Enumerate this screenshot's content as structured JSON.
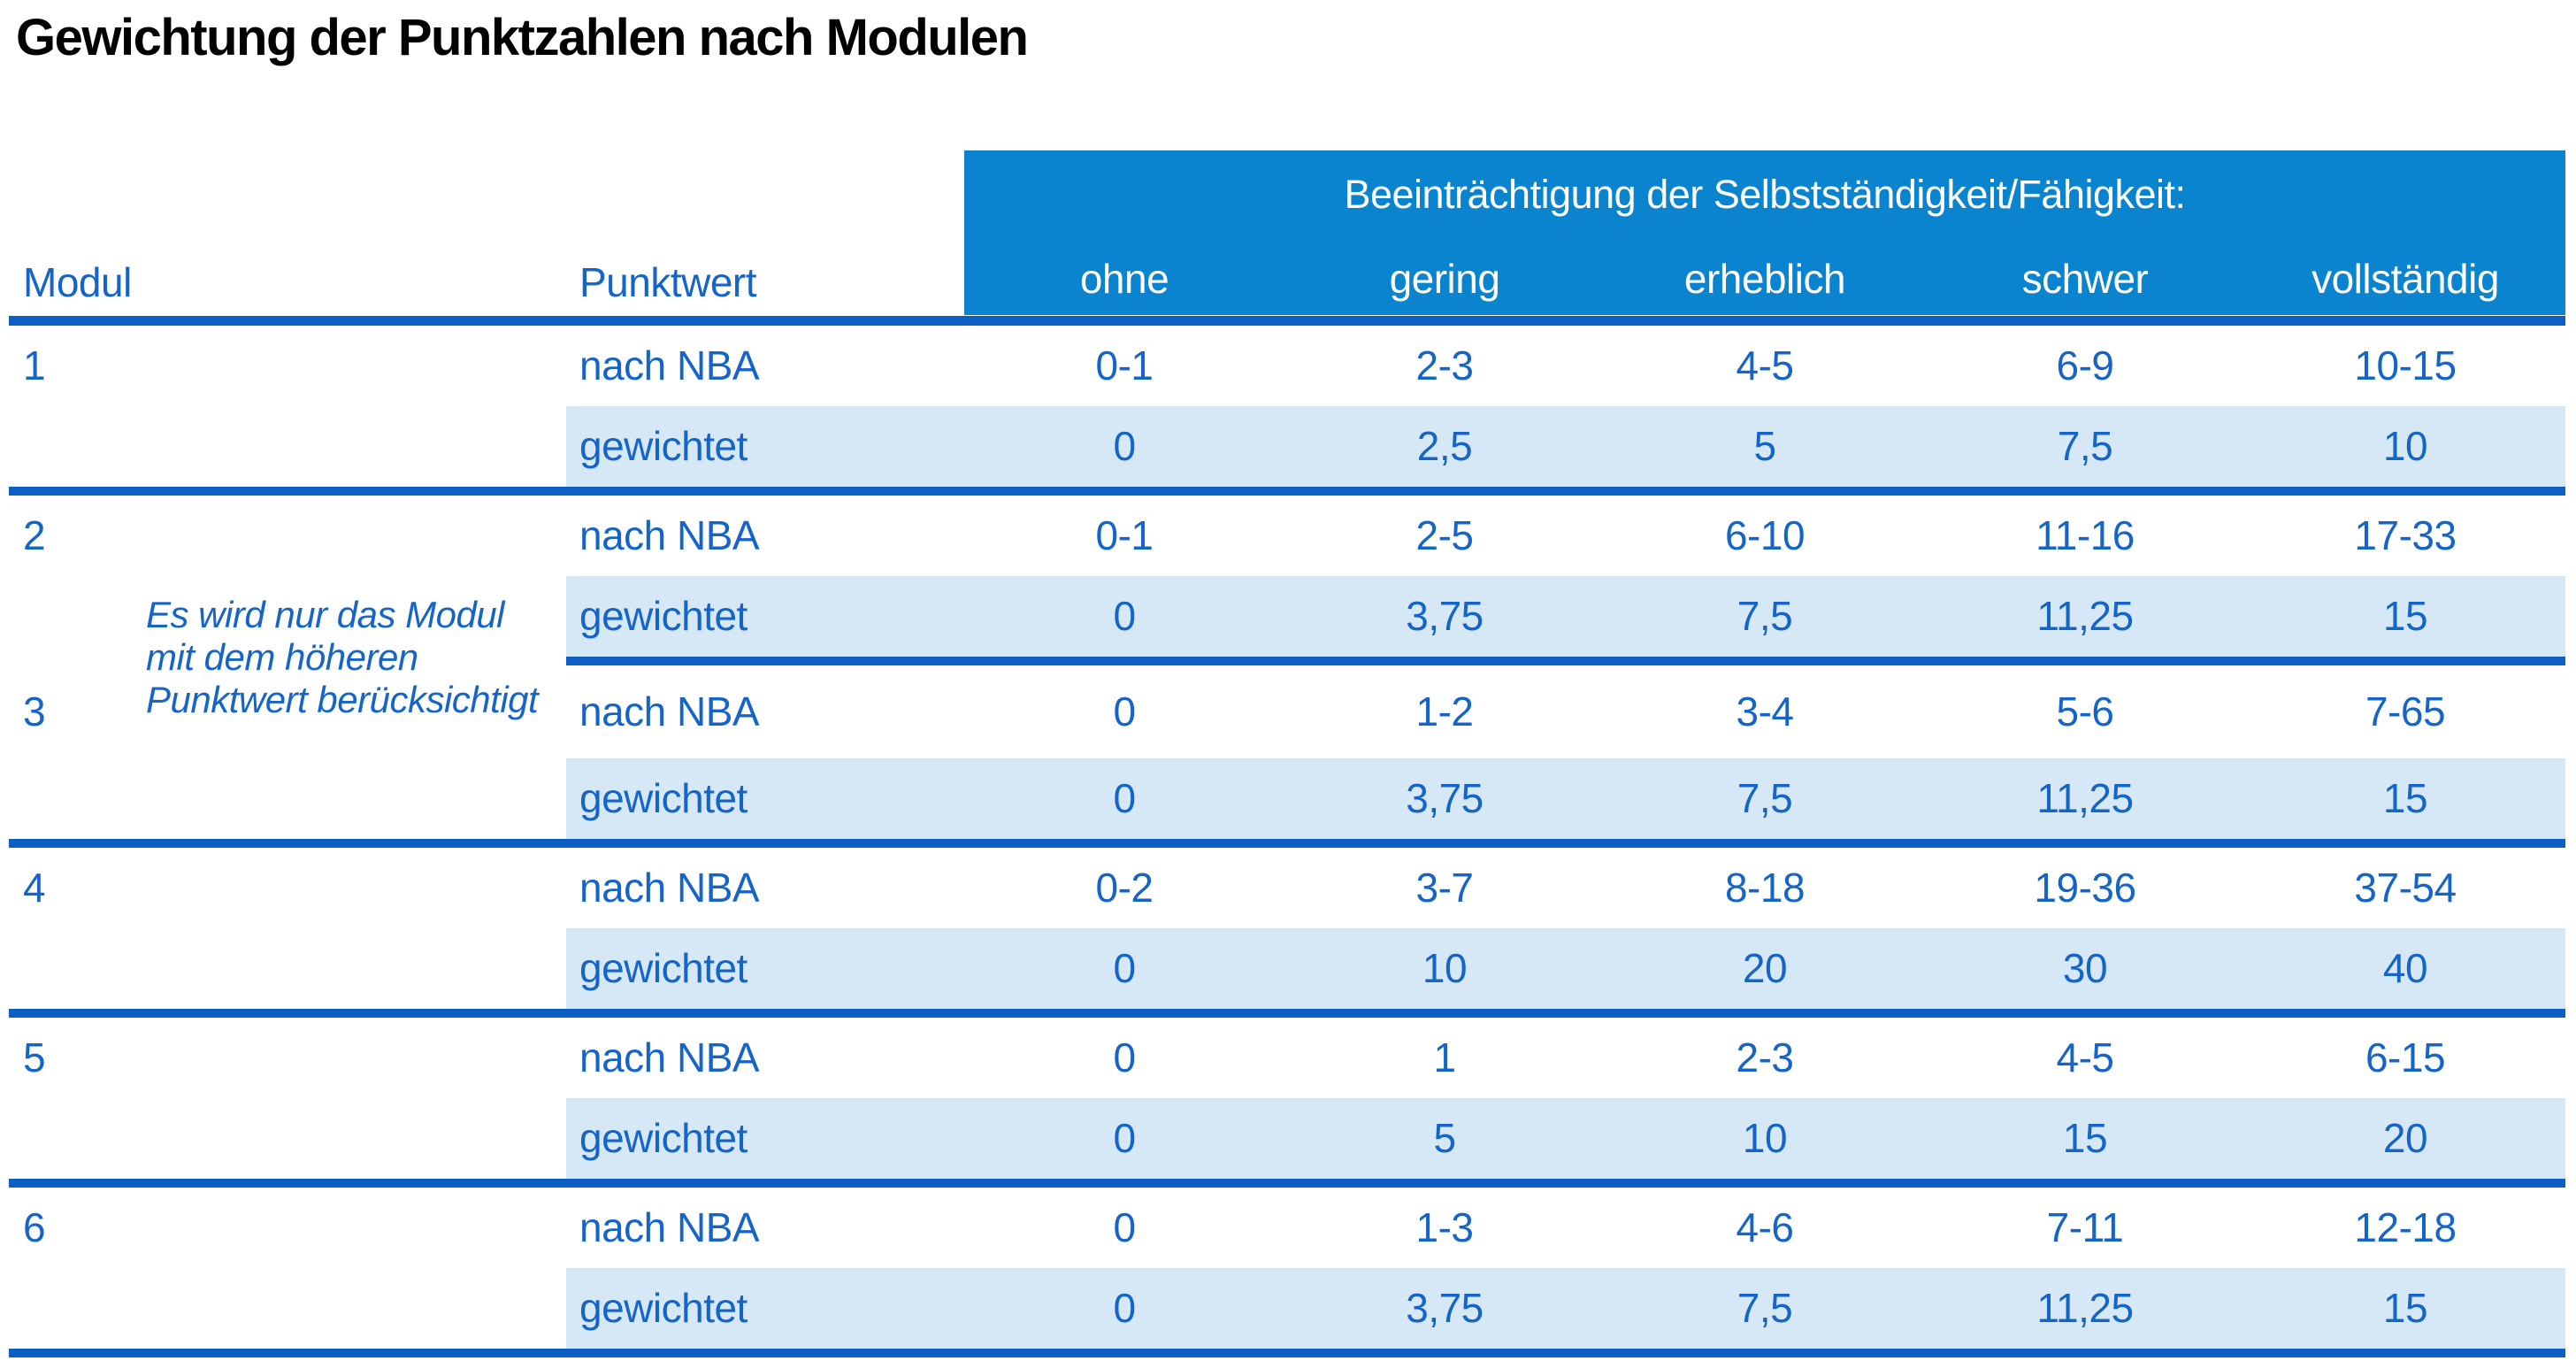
{
  "title": "Gewichtung der Punktzahlen nach Modulen",
  "colors": {
    "header_bg": "#0a84ce",
    "line_blue": "#0c5fc4",
    "text_blue": "#1565c8",
    "row_alt_bg": "#d6e8f5",
    "title_color": "#000000",
    "header_text": "#ffffff"
  },
  "table": {
    "col_module": "Modul",
    "col_pointvalue": "Punktwert",
    "group_header": "Beeinträchtigung der Selbstständigkeit/Fähigkeit:",
    "severity_levels": [
      "ohne",
      "gering",
      "erheblich",
      "schwer",
      "vollständig"
    ],
    "row_labels": {
      "nba": "nach NBA",
      "weighted": "gewichtet"
    },
    "note_lines": [
      "Es wird nur das Modul",
      "mit dem höheren",
      "Punktwert berücksichtigt"
    ],
    "modules": [
      {
        "number": "1",
        "nba": [
          "0-1",
          "2-3",
          "4-5",
          "6-9",
          "10-15"
        ],
        "weighted": [
          "0",
          "2,5",
          "5",
          "7,5",
          "10"
        ]
      },
      {
        "number": "2",
        "nba": [
          "0-1",
          "2-5",
          "6-10",
          "11-16",
          "17-33"
        ],
        "weighted": [
          "0",
          "3,75",
          "7,5",
          "11,25",
          "15"
        ]
      },
      {
        "number": "3",
        "nba": [
          "0",
          "1-2",
          "3-4",
          "5-6",
          "7-65"
        ],
        "weighted": [
          "0",
          "3,75",
          "7,5",
          "11,25",
          "15"
        ]
      },
      {
        "number": "4",
        "nba": [
          "0-2",
          "3-7",
          "8-18",
          "19-36",
          "37-54"
        ],
        "weighted": [
          "0",
          "10",
          "20",
          "30",
          "40"
        ]
      },
      {
        "number": "5",
        "nba": [
          "0",
          "1",
          "2-3",
          "4-5",
          "6-15"
        ],
        "weighted": [
          "0",
          "5",
          "10",
          "15",
          "20"
        ]
      },
      {
        "number": "6",
        "nba": [
          "0",
          "1-3",
          "4-6",
          "7-11",
          "12-18"
        ],
        "weighted": [
          "0",
          "3,75",
          "7,5",
          "11,25",
          "15"
        ]
      }
    ]
  }
}
